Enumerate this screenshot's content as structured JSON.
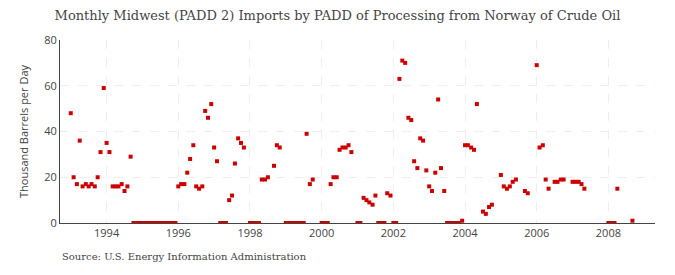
{
  "chart_data": {
    "type": "scatter",
    "title": "Monthly Midwest (PADD 2) Imports by PADD of Processing from Norway of Crude Oil",
    "ylabel": "Thousand Barrels per Day",
    "annotations": [
      "Source: U.S. Energy Information Administration"
    ],
    "color": "#cc0000",
    "marker": "square",
    "grid": true,
    "xlim": [
      1992.7,
      2009.3
    ],
    "xticks": [
      1994,
      1996,
      1998,
      2000,
      2002,
      2004,
      2006,
      2008
    ],
    "ylim": [
      0,
      80
    ],
    "yticks": [
      0,
      20,
      40,
      60,
      80
    ],
    "x": [
      1993.0,
      1993.08,
      1993.17,
      1993.25,
      1993.33,
      1993.42,
      1993.5,
      1993.58,
      1993.67,
      1993.75,
      1993.83,
      1993.92,
      1994.0,
      1994.08,
      1994.17,
      1994.25,
      1994.33,
      1994.42,
      1994.5,
      1994.58,
      1994.67,
      1994.75,
      1994.83,
      1994.92,
      1995.0,
      1995.08,
      1995.17,
      1995.25,
      1995.33,
      1995.42,
      1995.5,
      1995.58,
      1995.67,
      1995.75,
      1995.83,
      1995.92,
      1996.0,
      1996.08,
      1996.17,
      1996.25,
      1996.33,
      1996.42,
      1996.5,
      1996.58,
      1996.67,
      1996.75,
      1996.83,
      1996.92,
      1997.0,
      1997.08,
      1997.17,
      1997.25,
      1997.33,
      1997.42,
      1997.5,
      1997.58,
      1997.67,
      1997.75,
      1997.83,
      1998.0,
      1998.08,
      1998.17,
      1998.25,
      1998.33,
      1998.42,
      1998.5,
      1998.67,
      1998.75,
      1998.83,
      1999.0,
      1999.08,
      1999.17,
      1999.25,
      1999.33,
      1999.42,
      1999.5,
      1999.58,
      1999.67,
      1999.75,
      2000.0,
      2000.08,
      2000.17,
      2000.25,
      2000.33,
      2000.42,
      2000.5,
      2000.58,
      2000.67,
      2000.75,
      2000.83,
      2001.0,
      2001.08,
      2001.17,
      2001.25,
      2001.33,
      2001.42,
      2001.5,
      2001.58,
      2001.67,
      2001.75,
      2001.83,
      2001.92,
      2002.0,
      2002.08,
      2002.17,
      2002.25,
      2002.33,
      2002.42,
      2002.5,
      2002.58,
      2002.67,
      2002.75,
      2002.83,
      2002.92,
      2003.0,
      2003.08,
      2003.17,
      2003.25,
      2003.33,
      2003.42,
      2003.5,
      2003.58,
      2003.67,
      2003.75,
      2003.83,
      2003.92,
      2004.0,
      2004.08,
      2004.17,
      2004.25,
      2004.33,
      2004.5,
      2004.58,
      2004.67,
      2004.75,
      2005.0,
      2005.08,
      2005.17,
      2005.25,
      2005.33,
      2005.42,
      2005.67,
      2005.75,
      2006.0,
      2006.08,
      2006.17,
      2006.25,
      2006.33,
      2006.5,
      2006.58,
      2006.67,
      2006.75,
      2007.0,
      2007.08,
      2007.17,
      2007.25,
      2007.33,
      2008.0,
      2008.08,
      2008.17,
      2008.25,
      2008.67
    ],
    "values": [
      48,
      20,
      17,
      36,
      16,
      17,
      16,
      17,
      16,
      20,
      31,
      59,
      35,
      31,
      16,
      16,
      16,
      17,
      14,
      16,
      29,
      0,
      0,
      0,
      0,
      0,
      0,
      0,
      0,
      0,
      0,
      0,
      0,
      0,
      0,
      0,
      16,
      17,
      17,
      22,
      28,
      34,
      16,
      15,
      16,
      49,
      46,
      52,
      33,
      27,
      0,
      0,
      0,
      10,
      12,
      26,
      37,
      35,
      33,
      0,
      0,
      0,
      0,
      19,
      19,
      20,
      25,
      34,
      33,
      0,
      0,
      0,
      0,
      0,
      0,
      0,
      39,
      17,
      19,
      0,
      0,
      0,
      17,
      20,
      20,
      32,
      33,
      33,
      34,
      31,
      0,
      0,
      11,
      10,
      9,
      8,
      12,
      0,
      0,
      0,
      13,
      12,
      0,
      0,
      63,
      71,
      70,
      46,
      45,
      27,
      24,
      37,
      36,
      23,
      16,
      14,
      22,
      54,
      24,
      14,
      0,
      0,
      0,
      0,
      0,
      1,
      34,
      34,
      33,
      32,
      52,
      5,
      4,
      7,
      8,
      21,
      16,
      15,
      16,
      18,
      19,
      14,
      13,
      69,
      33,
      34,
      19,
      15,
      18,
      18,
      19,
      19,
      18,
      18,
      18,
      17,
      15,
      0,
      0,
      0,
      15,
      1
    ]
  }
}
